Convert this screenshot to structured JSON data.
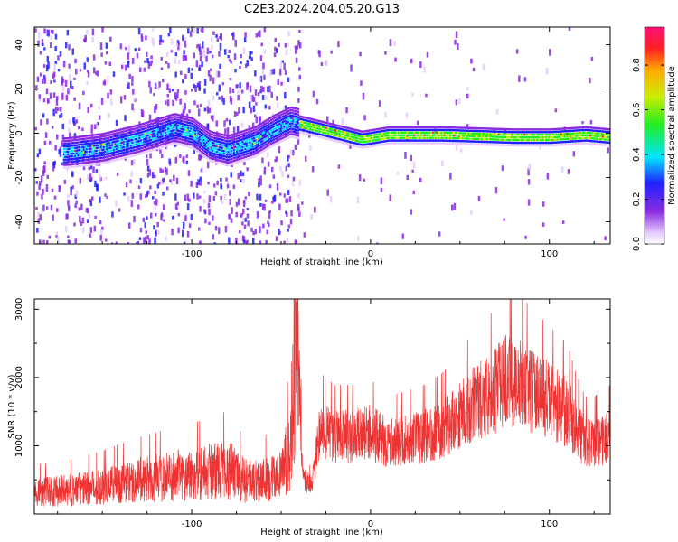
{
  "title": "C2E3.2024.204.05.20.G13",
  "chart_data": [
    {
      "type": "heatmap",
      "xlabel": "Height of straight line (km)",
      "ylabel": "Frequency (Hz)",
      "xlim": [
        -188,
        134
      ],
      "ylim": [
        -50,
        48
      ],
      "x_ticks": [
        -100,
        0,
        100
      ],
      "y_ticks": [
        -40,
        -20,
        0,
        20,
        40
      ],
      "colorbar": {
        "label": "Normalized spectral amplitude",
        "range": [
          0,
          0.97
        ],
        "ticks": [
          0.0,
          0.2,
          0.4,
          0.6,
          0.8
        ]
      },
      "ridge": {
        "x": [
          -170,
          -150,
          -130,
          -110,
          -100,
          -90,
          -80,
          -65,
          -55,
          -45,
          -35,
          -20,
          -5,
          10,
          40,
          80,
          100,
          120,
          134
        ],
        "y": [
          -8,
          -6,
          -2,
          3,
          1,
          -5,
          -7,
          -3,
          2,
          6,
          4,
          1,
          -2,
          0,
          0,
          -1,
          -1,
          0,
          -1
        ]
      }
    },
    {
      "type": "line",
      "xlabel": "Height of straight line (km)",
      "ylabel": "SNR (10 * v/v)",
      "xlim": [
        -188,
        134
      ],
      "ylim": [
        0,
        3150
      ],
      "x_ticks": [
        -100,
        0,
        100
      ],
      "y_ticks": [
        1000,
        2000,
        3000
      ],
      "series": [
        {
          "color": "#ee3333",
          "x": [
            -188,
            -170,
            -150,
            -130,
            -110,
            -95,
            -80,
            -70,
            -60,
            -50,
            -45,
            -41,
            -38,
            -33,
            -28,
            -20,
            -10,
            0,
            10,
            20,
            30,
            40,
            50,
            60,
            70,
            75,
            80,
            85,
            90,
            100,
            110,
            115,
            120,
            125,
            134
          ],
          "y": [
            300,
            320,
            380,
            460,
            520,
            560,
            620,
            450,
            470,
            520,
            900,
            2800,
            500,
            400,
            1200,
            1100,
            1100,
            1150,
            1000,
            1050,
            1100,
            1200,
            1400,
            1600,
            1750,
            1900,
            1850,
            1850,
            1750,
            1600,
            1450,
            1200,
            1000,
            1000,
            1100
          ]
        }
      ]
    }
  ]
}
